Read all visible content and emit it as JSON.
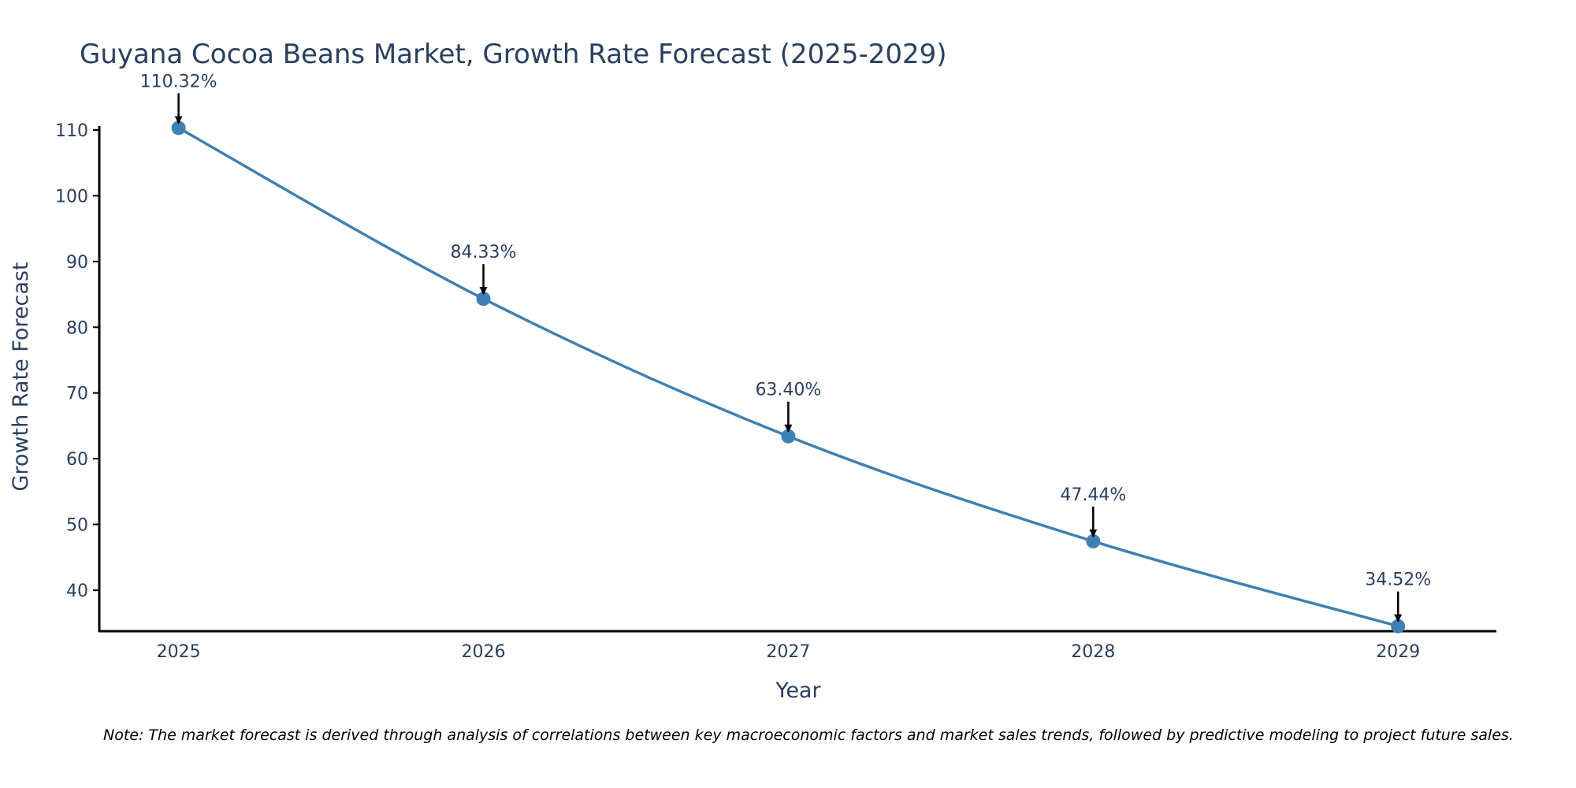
{
  "chart_data": {
    "type": "line",
    "title": "Guyana Cocoa Beans Market, Growth Rate Forecast (2025-2029)",
    "xlabel": "Year",
    "ylabel": "Growth Rate Forecast",
    "x": [
      2025,
      2026,
      2027,
      2028,
      2029
    ],
    "x_tick_labels": [
      "2025",
      "2026",
      "2027",
      "2028",
      "2029"
    ],
    "values": [
      110.32,
      84.33,
      63.4,
      47.44,
      34.52
    ],
    "data_labels": [
      "110.32%",
      "84.33%",
      "63.40%",
      "47.44%",
      "34.52%"
    ],
    "y_ticks": [
      40,
      50,
      60,
      70,
      80,
      90,
      100,
      110
    ],
    "y_tick_labels": [
      "40",
      "50",
      "60",
      "70",
      "80",
      "90",
      "100",
      "110"
    ],
    "ylim": [
      33.76,
      110.36
    ],
    "xlim": [
      2024.74,
      2029.32
    ],
    "grid": false,
    "line_color": "#3f80b2",
    "note": "Note: The market forecast is derived through analysis of correlations between key macroeconomic factors and market sales trends, followed by predictive modeling to project future sales."
  }
}
